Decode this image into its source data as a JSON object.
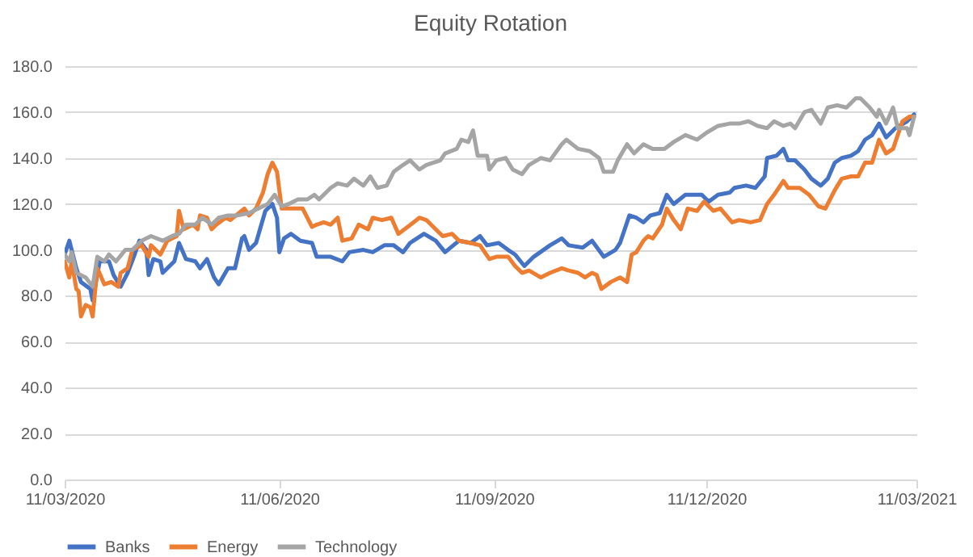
{
  "chart_data": {
    "type": "line",
    "title": "Equity Rotation",
    "legend": "bottom",
    "grid": "y",
    "xlim": [
      "2020-03-11",
      "2021-03-11"
    ],
    "xticks": [
      {
        "value": "2020-03-11",
        "label": "11/03/2020"
      },
      {
        "value": "2020-06-11",
        "label": "11/06/2020"
      },
      {
        "value": "2020-09-11",
        "label": "11/09/2020"
      },
      {
        "value": "2020-12-11",
        "label": "11/12/2020"
      },
      {
        "value": "2021-03-11",
        "label": "11/03/2021"
      }
    ],
    "ylim": [
      0,
      180
    ],
    "yticks": [
      {
        "value": 0,
        "label": "0.0"
      },
      {
        "value": 20,
        "label": "20.0"
      },
      {
        "value": 40,
        "label": "40.0"
      },
      {
        "value": 60,
        "label": "60.0"
      },
      {
        "value": 80,
        "label": "80.0"
      },
      {
        "value": 100,
        "label": "100.0"
      },
      {
        "value": 120,
        "label": "120.0"
      },
      {
        "value": 140,
        "label": "140.0"
      },
      {
        "value": 160,
        "label": "160.0"
      },
      {
        "value": 180,
        "label": "180.0"
      }
    ],
    "series": [
      {
        "name": "Banks",
        "color": "#4472c4",
        "x": [
          "2020-03-11",
          "2020-03-13",
          "2020-03-16",
          "2020-03-18",
          "2020-03-22",
          "2020-03-23",
          "2020-03-26",
          "2020-03-30",
          "2020-04-01",
          "2020-04-04",
          "2020-04-07",
          "2020-04-10",
          "2020-04-12",
          "2020-04-15",
          "2020-04-16",
          "2020-04-18",
          "2020-04-21",
          "2020-04-22",
          "2020-04-27",
          "2020-04-29",
          "2020-05-02",
          "2020-05-06",
          "2020-05-08",
          "2020-05-11",
          "2020-05-14",
          "2020-05-16",
          "2020-05-20",
          "2020-05-23",
          "2020-05-26",
          "2020-05-27",
          "2020-05-29",
          "2020-06-01",
          "2020-06-05",
          "2020-06-08",
          "2020-06-10",
          "2020-06-11",
          "2020-06-13",
          "2020-06-16",
          "2020-06-20",
          "2020-06-25",
          "2020-06-27",
          "2020-07-03",
          "2020-07-08",
          "2020-07-11",
          "2020-07-17",
          "2020-07-21",
          "2020-07-26",
          "2020-07-30",
          "2020-08-03",
          "2020-08-06",
          "2020-08-12",
          "2020-08-17",
          "2020-08-21",
          "2020-08-27",
          "2020-09-01",
          "2020-09-05",
          "2020-09-08",
          "2020-09-13",
          "2020-09-17",
          "2020-09-20",
          "2020-09-24",
          "2020-09-28",
          "2020-10-05",
          "2020-10-10",
          "2020-10-13",
          "2020-10-19",
          "2020-10-23",
          "2020-10-28",
          "2020-11-02",
          "2020-11-04",
          "2020-11-08",
          "2020-11-11",
          "2020-11-14",
          "2020-11-17",
          "2020-11-21",
          "2020-11-24",
          "2020-11-27",
          "2020-12-02",
          "2020-12-06",
          "2020-12-09",
          "2020-12-12",
          "2020-12-16",
          "2020-12-21",
          "2020-12-23",
          "2020-12-28",
          "2021-01-01",
          "2021-01-05",
          "2021-01-06",
          "2021-01-10",
          "2021-01-13",
          "2021-01-15",
          "2021-01-18",
          "2021-01-22",
          "2021-01-25",
          "2021-01-29",
          "2021-02-01",
          "2021-02-04",
          "2021-02-07",
          "2021-02-11",
          "2021-02-14",
          "2021-02-17",
          "2021-02-20",
          "2021-02-23",
          "2021-02-26",
          "2021-03-02",
          "2021-03-07",
          "2021-03-10"
        ],
        "values": [
          98,
          104,
          92,
          86,
          83,
          78,
          95,
          95,
          89,
          84,
          90,
          98,
          104,
          100,
          89,
          96,
          95,
          90,
          95,
          103,
          96,
          95,
          92,
          96,
          88,
          85,
          92,
          92,
          105,
          106,
          100,
          103,
          117,
          120,
          114,
          99,
          105,
          107,
          104,
          103,
          97,
          97,
          95,
          99,
          100,
          99,
          102,
          102,
          99,
          103,
          107,
          104,
          99,
          104,
          103,
          106,
          102,
          103,
          100,
          98,
          93,
          97,
          102,
          105,
          102,
          101,
          104,
          97,
          100,
          103,
          115,
          114,
          112,
          115,
          116,
          124,
          120,
          124,
          124,
          124,
          121,
          124,
          125,
          127,
          128,
          127,
          132,
          140,
          141,
          144,
          139,
          139,
          135,
          131,
          128,
          131,
          138,
          140,
          141,
          143,
          148,
          150,
          155,
          149,
          153,
          156,
          159
        ]
      },
      {
        "name": "Energy",
        "color": "#ed7d31",
        "x": [
          "2020-03-11",
          "2020-03-13",
          "2020-03-14",
          "2020-03-16",
          "2020-03-17",
          "2020-03-18",
          "2020-03-20",
          "2020-03-22",
          "2020-03-23",
          "2020-03-25",
          "2020-03-28",
          "2020-03-31",
          "2020-04-03",
          "2020-04-04",
          "2020-04-07",
          "2020-04-09",
          "2020-04-13",
          "2020-04-16",
          "2020-04-17",
          "2020-04-21",
          "2020-04-24",
          "2020-04-28",
          "2020-04-29",
          "2020-05-01",
          "2020-05-05",
          "2020-05-07",
          "2020-05-08",
          "2020-05-11",
          "2020-05-13",
          "2020-05-15",
          "2020-05-19",
          "2020-05-21",
          "2020-05-27",
          "2020-05-29",
          "2020-06-01",
          "2020-06-04",
          "2020-06-06",
          "2020-06-08",
          "2020-06-10",
          "2020-06-12",
          "2020-06-14",
          "2020-06-16",
          "2020-06-21",
          "2020-06-25",
          "2020-06-27",
          "2020-06-30",
          "2020-07-03",
          "2020-07-06",
          "2020-07-08",
          "2020-07-12",
          "2020-07-15",
          "2020-07-19",
          "2020-07-21",
          "2020-07-25",
          "2020-07-29",
          "2020-08-01",
          "2020-08-05",
          "2020-08-10",
          "2020-08-13",
          "2020-08-17",
          "2020-08-20",
          "2020-08-24",
          "2020-08-27",
          "2020-09-01",
          "2020-09-05",
          "2020-09-09",
          "2020-09-12",
          "2020-09-17",
          "2020-09-20",
          "2020-09-23",
          "2020-09-26",
          "2020-10-01",
          "2020-10-05",
          "2020-10-10",
          "2020-10-13",
          "2020-10-17",
          "2020-10-20",
          "2020-10-23",
          "2020-10-25",
          "2020-10-27",
          "2020-10-31",
          "2020-11-04",
          "2020-11-07",
          "2020-11-09",
          "2020-11-11",
          "2020-11-14",
          "2020-11-16",
          "2020-11-18",
          "2020-11-22",
          "2020-11-24",
          "2020-11-27",
          "2020-11-30",
          "2020-12-03",
          "2020-12-07",
          "2020-12-10",
          "2020-12-14",
          "2020-12-17",
          "2020-12-22",
          "2020-12-25",
          "2020-12-30",
          "2021-01-03",
          "2021-01-06",
          "2021-01-09",
          "2021-01-13",
          "2021-01-15",
          "2021-01-20",
          "2021-01-24",
          "2021-01-28",
          "2021-01-31",
          "2021-02-04",
          "2021-02-07",
          "2021-02-11",
          "2021-02-14",
          "2021-02-17",
          "2021-02-20",
          "2021-02-23",
          "2021-02-26",
          "2021-03-01",
          "2021-03-05",
          "2021-03-08",
          "2021-03-10"
        ],
        "values": [
          95,
          88,
          95,
          83,
          82,
          71,
          76,
          75,
          71,
          92,
          85,
          86,
          84,
          90,
          92,
          100,
          102,
          97,
          102,
          98,
          104,
          106,
          117,
          109,
          111,
          109,
          115,
          114,
          109,
          111,
          114,
          113,
          118,
          115,
          118,
          125,
          133,
          138,
          134,
          118,
          118,
          118,
          118,
          110,
          111,
          112,
          111,
          114,
          104,
          105,
          111,
          109,
          114,
          113,
          114,
          107,
          110,
          114,
          113,
          109,
          106,
          107,
          104,
          103,
          102,
          96,
          97,
          97,
          93,
          90,
          91,
          88,
          90,
          92,
          91,
          90,
          88,
          90,
          89,
          83,
          86,
          88,
          86,
          98,
          99,
          104,
          106,
          105,
          111,
          118,
          113,
          109,
          118,
          117,
          121,
          117,
          118,
          112,
          113,
          112,
          113,
          120,
          124,
          130,
          127,
          127,
          124,
          119,
          118,
          126,
          131,
          132,
          132,
          138,
          138,
          148,
          142,
          144,
          156,
          158,
          158
        ]
      },
      {
        "name": "Technology",
        "color": "#a5a5a5",
        "x": [
          "2020-03-11",
          "2020-03-13",
          "2020-03-14",
          "2020-03-16",
          "2020-03-20",
          "2020-03-23",
          "2020-03-25",
          "2020-03-28",
          "2020-03-30",
          "2020-04-02",
          "2020-04-06",
          "2020-04-09",
          "2020-04-13",
          "2020-04-15",
          "2020-04-17",
          "2020-04-22",
          "2020-04-26",
          "2020-04-29",
          "2020-05-02",
          "2020-05-06",
          "2020-05-09",
          "2020-05-13",
          "2020-05-16",
          "2020-05-20",
          "2020-05-24",
          "2020-05-29",
          "2020-06-02",
          "2020-06-06",
          "2020-06-09",
          "2020-06-12",
          "2020-06-15",
          "2020-06-19",
          "2020-06-23",
          "2020-06-26",
          "2020-06-28",
          "2020-07-03",
          "2020-07-06",
          "2020-07-10",
          "2020-07-13",
          "2020-07-17",
          "2020-07-20",
          "2020-07-23",
          "2020-07-27",
          "2020-07-30",
          "2020-08-03",
          "2020-08-06",
          "2020-08-10",
          "2020-08-13",
          "2020-08-19",
          "2020-08-21",
          "2020-08-26",
          "2020-08-28",
          "2020-08-31",
          "2020-09-02",
          "2020-09-04",
          "2020-09-08",
          "2020-09-09",
          "2020-09-12",
          "2020-09-16",
          "2020-09-19",
          "2020-09-23",
          "2020-09-26",
          "2020-10-01",
          "2020-10-05",
          "2020-10-10",
          "2020-10-12",
          "2020-10-17",
          "2020-10-22",
          "2020-10-26",
          "2020-10-28",
          "2020-11-01",
          "2020-11-03",
          "2020-11-07",
          "2020-11-10",
          "2020-11-14",
          "2020-11-18",
          "2020-11-23",
          "2020-11-27",
          "2020-12-02",
          "2020-12-07",
          "2020-12-11",
          "2020-12-16",
          "2020-12-21",
          "2020-12-25",
          "2020-12-29",
          "2021-01-02",
          "2021-01-06",
          "2021-01-09",
          "2021-01-13",
          "2021-01-16",
          "2021-01-18",
          "2021-01-22",
          "2021-01-25",
          "2021-01-29",
          "2021-02-01",
          "2021-02-05",
          "2021-02-09",
          "2021-02-13",
          "2021-02-15",
          "2021-02-19",
          "2021-02-22",
          "2021-02-23",
          "2021-02-26",
          "2021-03-01",
          "2021-03-03",
          "2021-03-07",
          "2021-03-08",
          "2021-03-10"
        ],
        "values": [
          98,
          95,
          99,
          90,
          88,
          84,
          97,
          95,
          98,
          95,
          100,
          100,
          104,
          105,
          106,
          104,
          106,
          107,
          111,
          111,
          114,
          111,
          114,
          115,
          115,
          116,
          118,
          120,
          124,
          119,
          120,
          122,
          122,
          124,
          122,
          127,
          129,
          128,
          131,
          128,
          132,
          127,
          128,
          134,
          137,
          139,
          135,
          137,
          139,
          142,
          144,
          148,
          147,
          152,
          141,
          141,
          135,
          139,
          140,
          135,
          133,
          137,
          140,
          139,
          146,
          148,
          144,
          143,
          140,
          134,
          134,
          139,
          146,
          142,
          146,
          144,
          144,
          147,
          150,
          148,
          151,
          154,
          155,
          155,
          156,
          154,
          153,
          156,
          154,
          155,
          153,
          160,
          161,
          155,
          162,
          163,
          162,
          166,
          166,
          162,
          158,
          161,
          155,
          162,
          153,
          153,
          150,
          158
        ]
      }
    ]
  }
}
